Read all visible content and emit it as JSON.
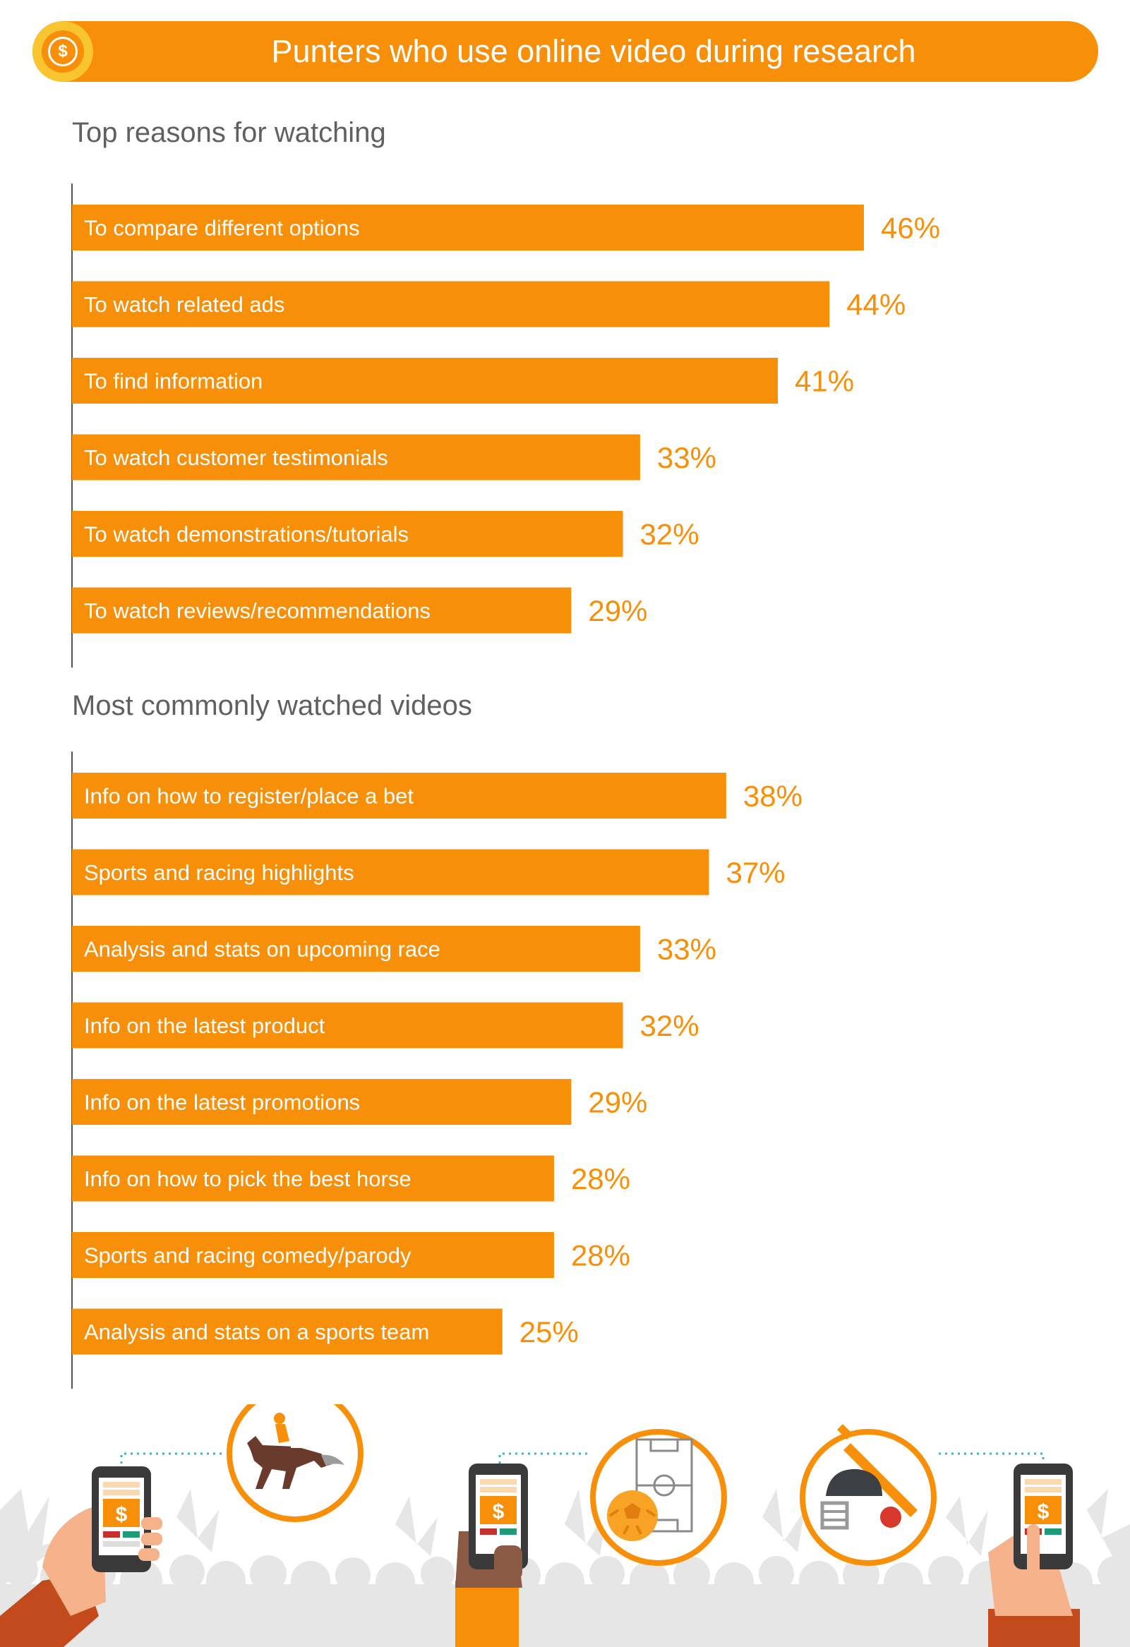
{
  "header": {
    "title": "Punters who use online video during research"
  },
  "colors": {
    "accent": "#f88f08",
    "coin": "#f8c531",
    "text": "#5f6062",
    "axis": "#555555"
  },
  "chart_data": [
    {
      "type": "bar",
      "orientation": "horizontal",
      "title": "Top reasons for watching",
      "categories": [
        "To compare different options",
        "To watch related ads",
        "To find information",
        "To watch customer testimonials",
        "To watch demonstrations/tutorials",
        "To watch reviews/recommendations"
      ],
      "values": [
        46,
        44,
        41,
        33,
        32,
        29
      ],
      "value_labels": [
        "46%",
        "44%",
        "41%",
        "33%",
        "32%",
        "29%"
      ],
      "unit": "%",
      "xlim": [
        0,
        46
      ],
      "grid": false,
      "legend": "none"
    },
    {
      "type": "bar",
      "orientation": "horizontal",
      "title": "Most commonly watched videos",
      "categories": [
        "Info on how to register/place a bet",
        "Sports and racing highlights",
        "Analysis and stats on upcoming race",
        "Info on the latest product",
        "Info on the latest promotions",
        "Info on how to pick the best horse",
        "Sports and racing comedy/parody",
        "Analysis and stats on a sports team"
      ],
      "values": [
        38,
        37,
        33,
        32,
        29,
        28,
        28,
        25
      ],
      "value_labels": [
        "38%",
        "37%",
        "33%",
        "32%",
        "29%",
        "28%",
        "28%",
        "25%"
      ],
      "unit": "%",
      "xlim": [
        0,
        46
      ],
      "grid": false,
      "legend": "none"
    }
  ],
  "footer_icons": [
    {
      "icon": "phone-dollar-icon"
    },
    {
      "icon": "horse-racing-icon"
    },
    {
      "icon": "phone-dollar-icon"
    },
    {
      "icon": "soccer-icon"
    },
    {
      "icon": "cricket-icon"
    },
    {
      "icon": "phone-dollar-icon"
    }
  ]
}
